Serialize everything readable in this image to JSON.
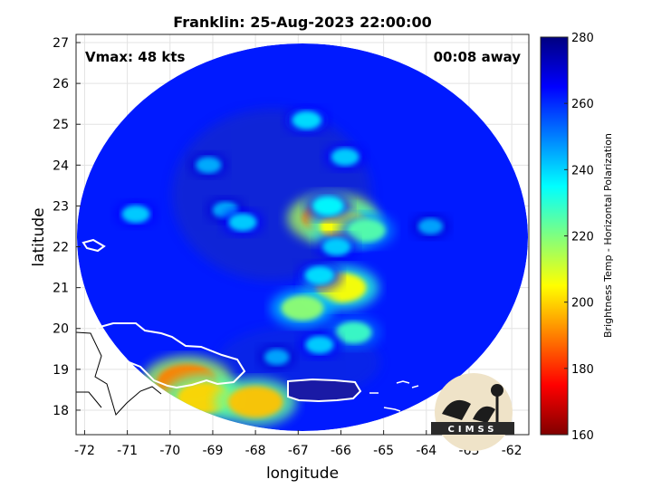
{
  "title": "Franklin: 25-Aug-2023 22:00:00",
  "annotations": {
    "vmax": "Vmax: 48 kts",
    "time_away": "00:08 away"
  },
  "axes": {
    "xlabel": "longitude",
    "ylabel": "latitude",
    "xlim": [
      -72.2,
      -61.6
    ],
    "ylim": [
      17.4,
      27.2
    ],
    "xticks": [
      "-72",
      "-71",
      "-70",
      "-69",
      "-68",
      "-67",
      "-66",
      "-65",
      "-64",
      "-63",
      "-62"
    ],
    "yticks": [
      "18",
      "19",
      "20",
      "21",
      "22",
      "23",
      "24",
      "25",
      "26",
      "27"
    ],
    "grid": true
  },
  "colorbar": {
    "label": "Brightness Temp - Horizontal Polarization",
    "range": [
      160,
      280
    ],
    "ticks": [
      "160",
      "180",
      "200",
      "220",
      "240",
      "260",
      "280"
    ],
    "colormap": "jet"
  },
  "scan": {
    "center": [
      -66.9,
      22.2
    ],
    "background_value": 262,
    "features": [
      {
        "lon": -66.2,
        "lat": 22.7,
        "value": 190
      },
      {
        "lon": -65.9,
        "lat": 22.5,
        "value": 205
      },
      {
        "lon": -65.4,
        "lat": 22.4,
        "value": 225
      },
      {
        "lon": -66.1,
        "lat": 22.0,
        "value": 240
      },
      {
        "lon": -66.3,
        "lat": 23.0,
        "value": 235
      },
      {
        "lon": -66.0,
        "lat": 21.0,
        "value": 205
      },
      {
        "lon": -65.7,
        "lat": 19.9,
        "value": 228
      },
      {
        "lon": -66.5,
        "lat": 19.6,
        "value": 240
      },
      {
        "lon": -66.9,
        "lat": 20.5,
        "value": 218
      },
      {
        "lon": -69.6,
        "lat": 18.7,
        "value": 190
      },
      {
        "lon": -69.2,
        "lat": 18.3,
        "value": 200
      },
      {
        "lon": -68.0,
        "lat": 18.2,
        "value": 198
      },
      {
        "lon": -66.8,
        "lat": 25.1,
        "value": 238
      },
      {
        "lon": -65.9,
        "lat": 24.2,
        "value": 240
      },
      {
        "lon": -68.7,
        "lat": 22.9,
        "value": 244
      },
      {
        "lon": -68.3,
        "lat": 22.6,
        "value": 240
      },
      {
        "lon": -69.1,
        "lat": 24.0,
        "value": 244
      },
      {
        "lon": -66.5,
        "lat": 21.3,
        "value": 238
      },
      {
        "lon": -70.8,
        "lat": 22.8,
        "value": 240
      },
      {
        "lon": -63.9,
        "lat": 22.5,
        "value": 245
      },
      {
        "lon": -67.5,
        "lat": 19.3,
        "value": 245
      }
    ]
  },
  "logo": {
    "text": "CIMSS"
  },
  "colors": {
    "coastline": "#ffffff",
    "border": "#000000"
  }
}
